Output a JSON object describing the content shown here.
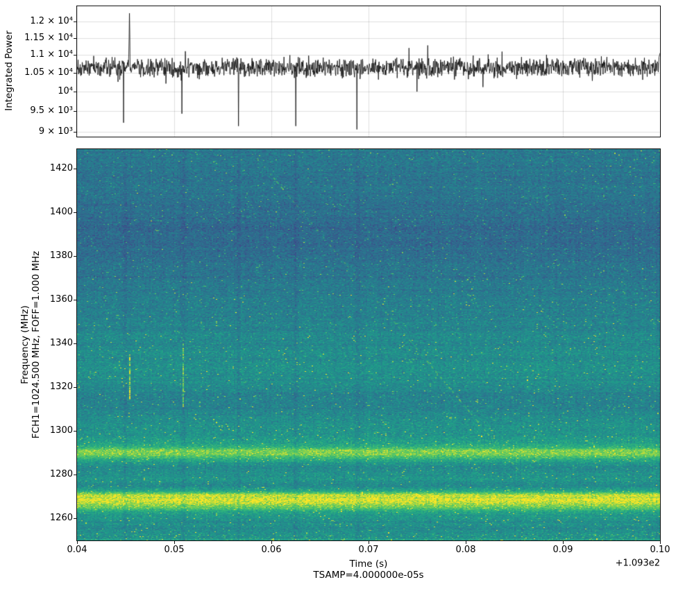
{
  "figure": {
    "background": "#ffffff"
  },
  "chart_data": [
    {
      "type": "line",
      "panel": "top",
      "ylabel": "Integrated Power",
      "yscale": "log",
      "ylim": [
        8880,
        12490
      ],
      "xlim": [
        0.04,
        0.1
      ],
      "yticks": [
        {
          "value": 12000,
          "label": "1.2 × 10⁴"
        },
        {
          "value": 11500,
          "label": "1.15 × 10⁴"
        },
        {
          "value": 11000,
          "label": "1.1 × 10⁴"
        },
        {
          "value": 10500,
          "label": "1.05 × 10⁴"
        },
        {
          "value": 10000,
          "label": "10⁴"
        },
        {
          "value": 9500,
          "label": "9.5 × 10³"
        },
        {
          "value": 9000,
          "label": "9 × 10³"
        }
      ],
      "line_color": "#0d0d0d",
      "grid_color": "rgba(0,0,0,0.12)",
      "baseline": 10650,
      "noise_sigma": 130,
      "events": [
        {
          "t": 0.0442,
          "value": 10250,
          "kind": "dip"
        },
        {
          "t": 0.0448,
          "value": 9210,
          "kind": "dip"
        },
        {
          "t": 0.0454,
          "value": 12265,
          "kind": "spike"
        },
        {
          "t": 0.0508,
          "value": 9430,
          "kind": "dip"
        },
        {
          "t": 0.0566,
          "value": 9130,
          "kind": "dip"
        },
        {
          "t": 0.0625,
          "value": 9130,
          "kind": "dip"
        },
        {
          "t": 0.0688,
          "value": 9050,
          "kind": "dip"
        },
        {
          "t": 0.075,
          "value": 9990,
          "kind": "dip"
        },
        {
          "t": 0.0999,
          "value": 11050,
          "kind": "rise"
        }
      ]
    },
    {
      "type": "heatmap",
      "panel": "bottom",
      "xlabel": "Time (s)",
      "xlabel2": "TSAMP=4.000000e-05s",
      "x_offset_label": "+1.093e2",
      "ylabel": "Frequency (MHz)",
      "ylabel2": "FCH1=1024.500 MHz, FOFF=1.000 MHz",
      "xlim": [
        0.04,
        0.1
      ],
      "ylim": [
        1250,
        1429
      ],
      "xticks": [
        {
          "value": 0.04,
          "label": "0.04"
        },
        {
          "value": 0.05,
          "label": "0.05"
        },
        {
          "value": 0.06,
          "label": "0.06"
        },
        {
          "value": 0.07,
          "label": "0.07"
        },
        {
          "value": 0.08,
          "label": "0.08"
        },
        {
          "value": 0.09,
          "label": "0.09"
        },
        {
          "value": 0.1,
          "label": "0.10"
        }
      ],
      "yticks": [
        {
          "value": 1420,
          "label": "1420"
        },
        {
          "value": 1400,
          "label": "1400"
        },
        {
          "value": 1380,
          "label": "1380"
        },
        {
          "value": 1360,
          "label": "1360"
        },
        {
          "value": 1340,
          "label": "1340"
        },
        {
          "value": 1320,
          "label": "1320"
        },
        {
          "value": 1300,
          "label": "1300"
        },
        {
          "value": 1280,
          "label": "1280"
        },
        {
          "value": 1260,
          "label": "1260"
        }
      ],
      "colormap": "viridis",
      "colormap_stops": [
        {
          "p": 0.0,
          "c": "#440154"
        },
        {
          "p": 0.125,
          "c": "#482878"
        },
        {
          "p": 0.25,
          "c": "#3e4989"
        },
        {
          "p": 0.375,
          "c": "#31688e"
        },
        {
          "p": 0.5,
          "c": "#26828e"
        },
        {
          "p": 0.625,
          "c": "#1f9e89"
        },
        {
          "p": 0.75,
          "c": "#35b779"
        },
        {
          "p": 0.875,
          "c": "#6ece58"
        },
        {
          "p": 1.0,
          "c": "#fde725"
        }
      ],
      "noise_sigma": 0.055,
      "band_profile": [
        [
          1429,
          0.47
        ],
        [
          1424,
          0.45
        ],
        [
          1420,
          0.44
        ],
        [
          1416,
          0.42
        ],
        [
          1412,
          0.44
        ],
        [
          1407,
          0.42
        ],
        [
          1402,
          0.42
        ],
        [
          1398,
          0.4
        ],
        [
          1393,
          0.38
        ],
        [
          1389,
          0.41
        ],
        [
          1385,
          0.39
        ],
        [
          1381,
          0.4
        ],
        [
          1377,
          0.43
        ],
        [
          1371,
          0.45
        ],
        [
          1365,
          0.46
        ],
        [
          1359,
          0.48
        ],
        [
          1353,
          0.5
        ],
        [
          1347,
          0.51
        ],
        [
          1341,
          0.53
        ],
        [
          1335,
          0.55
        ],
        [
          1329,
          0.56
        ],
        [
          1323,
          0.55
        ],
        [
          1318,
          0.52
        ],
        [
          1313,
          0.49
        ],
        [
          1309,
          0.52
        ],
        [
          1305,
          0.55
        ],
        [
          1300,
          0.58
        ],
        [
          1296,
          0.61
        ],
        [
          1293,
          0.7
        ],
        [
          1291,
          0.9
        ],
        [
          1289,
          0.86
        ],
        [
          1287,
          0.66
        ],
        [
          1284,
          0.53
        ],
        [
          1281,
          0.56
        ],
        [
          1278,
          0.59
        ],
        [
          1275,
          0.53
        ],
        [
          1273,
          0.62
        ],
        [
          1271,
          0.9
        ],
        [
          1269,
          0.98
        ],
        [
          1267,
          0.96
        ],
        [
          1265,
          0.85
        ],
        [
          1263,
          0.64
        ],
        [
          1261,
          0.59
        ],
        [
          1258,
          0.56
        ],
        [
          1255,
          0.52
        ],
        [
          1253,
          0.56
        ],
        [
          1250,
          0.61
        ]
      ],
      "events": {
        "dark_columns": [
          0.0448,
          0.0508,
          0.0566,
          0.0625,
          0.0688
        ],
        "bright_streaks": [
          {
            "t": 0.0454,
            "f_lo": 1314,
            "f_hi": 1335,
            "intensity": 0.92
          },
          {
            "t": 0.0509,
            "f_lo": 1311,
            "f_hi": 1340,
            "intensity": 0.85
          }
        ],
        "drifting_signal": {
          "t_start": 0.0585,
          "f_start": 1425,
          "t_end": 0.0892,
          "f_end": 1262,
          "segments": [
            {
              "s0": 0.0,
              "s1": 0.055,
              "a": 0.45
            },
            {
              "s0": 0.055,
              "s1": 0.1,
              "a": 0.95
            },
            {
              "s0": 0.1,
              "s1": 0.42,
              "a": 0.35
            },
            {
              "s0": 0.42,
              "s1": 0.62,
              "a": 0.65
            },
            {
              "s0": 0.62,
              "s1": 0.88,
              "a": 0.9
            },
            {
              "s0": 0.88,
              "s1": 1.0,
              "a": 0.4
            }
          ]
        }
      }
    }
  ]
}
